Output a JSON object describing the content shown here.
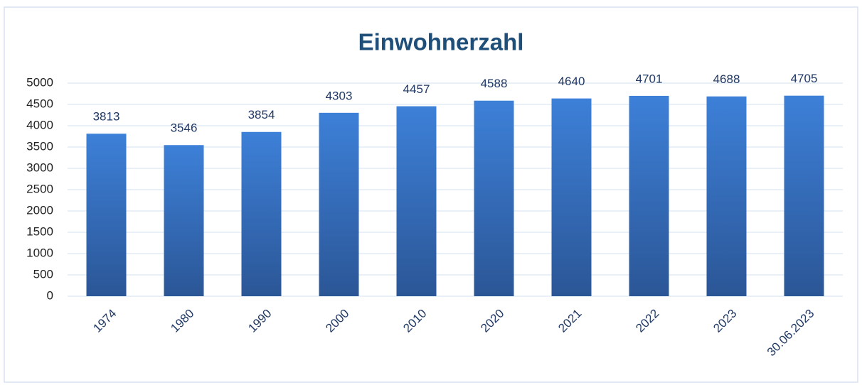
{
  "chart_data": {
    "type": "bar",
    "title": "Einwohnerzahl",
    "categories": [
      "1974",
      "1980",
      "1990",
      "2000",
      "2010",
      "2020",
      "2021",
      "2022",
      "2023",
      "30.06.2023"
    ],
    "values": [
      3813,
      3546,
      3854,
      4303,
      4457,
      4588,
      4640,
      4701,
      4688,
      4705
    ],
    "color": [
      "#3d80d8",
      "#2b5696"
    ],
    "ylim": [
      0,
      5000
    ],
    "yticks": [
      0,
      500,
      1000,
      1500,
      2000,
      2500,
      3000,
      3500,
      4000,
      4500,
      5000
    ],
    "grid": true
  }
}
